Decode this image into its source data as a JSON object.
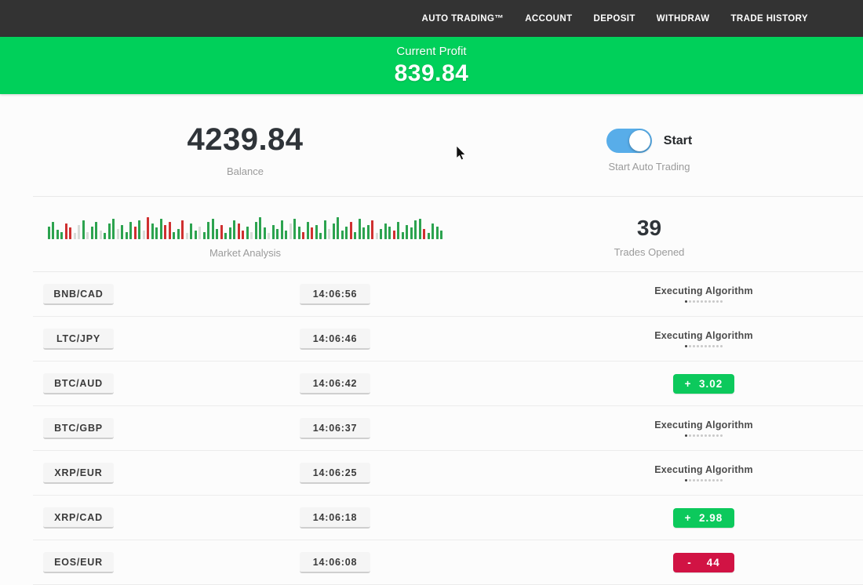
{
  "nav": {
    "items": [
      "AUTO TRADING™",
      "ACCOUNT",
      "DEPOSIT",
      "WITHDRAW",
      "TRADE HISTORY"
    ]
  },
  "banner": {
    "label": "Current Profit",
    "value": "839.84"
  },
  "account": {
    "balance": "4239.84",
    "balance_label": "Balance",
    "toggle_label": "Start",
    "toggle_sublabel": "Start Auto Trading",
    "toggle_on": true
  },
  "market": {
    "chart_label": "Market Analysis",
    "trades_opened": "39",
    "trades_opened_label": "Trades Opened"
  },
  "chart_data": {
    "type": "bar",
    "title": "Market Analysis",
    "xlabel": "",
    "ylabel": "",
    "legend": false,
    "note": "decorative mini candlestick-style bar strip; heights in px (8-30), colors g=green r=red l=light",
    "colors": {
      "g": "#2ca34f",
      "r": "#cf3030",
      "l": "#d8dcd8"
    },
    "bars": [
      [
        16,
        "g"
      ],
      [
        22,
        "g"
      ],
      [
        12,
        "g"
      ],
      [
        9,
        "g"
      ],
      [
        20,
        "r"
      ],
      [
        15,
        "r"
      ],
      [
        8,
        "l"
      ],
      [
        18,
        "l"
      ],
      [
        24,
        "g"
      ],
      [
        9,
        "l"
      ],
      [
        16,
        "g"
      ],
      [
        22,
        "g"
      ],
      [
        11,
        "l"
      ],
      [
        8,
        "g"
      ],
      [
        20,
        "g"
      ],
      [
        26,
        "g"
      ],
      [
        13,
        "l"
      ],
      [
        18,
        "g"
      ],
      [
        9,
        "g"
      ],
      [
        22,
        "g"
      ],
      [
        16,
        "r"
      ],
      [
        24,
        "g"
      ],
      [
        11,
        "l"
      ],
      [
        28,
        "r"
      ],
      [
        20,
        "g"
      ],
      [
        15,
        "g"
      ],
      [
        26,
        "g"
      ],
      [
        18,
        "r"
      ],
      [
        22,
        "r"
      ],
      [
        9,
        "g"
      ],
      [
        13,
        "g"
      ],
      [
        24,
        "r"
      ],
      [
        8,
        "l"
      ],
      [
        20,
        "g"
      ],
      [
        11,
        "g"
      ],
      [
        16,
        "l"
      ],
      [
        9,
        "g"
      ],
      [
        22,
        "g"
      ],
      [
        26,
        "g"
      ],
      [
        13,
        "g"
      ],
      [
        18,
        "r"
      ],
      [
        8,
        "g"
      ],
      [
        15,
        "g"
      ],
      [
        24,
        "g"
      ],
      [
        20,
        "r"
      ],
      [
        11,
        "r"
      ],
      [
        16,
        "g"
      ],
      [
        9,
        "l"
      ],
      [
        22,
        "g"
      ],
      [
        28,
        "g"
      ],
      [
        15,
        "g"
      ],
      [
        8,
        "l"
      ],
      [
        18,
        "g"
      ],
      [
        13,
        "g"
      ],
      [
        24,
        "g"
      ],
      [
        11,
        "g"
      ],
      [
        20,
        "l"
      ],
      [
        26,
        "g"
      ],
      [
        16,
        "g"
      ],
      [
        9,
        "r"
      ],
      [
        22,
        "g"
      ],
      [
        15,
        "r"
      ],
      [
        18,
        "g"
      ],
      [
        8,
        "g"
      ],
      [
        24,
        "g"
      ],
      [
        13,
        "l"
      ],
      [
        20,
        "g"
      ],
      [
        28,
        "g"
      ],
      [
        11,
        "g"
      ],
      [
        16,
        "g"
      ],
      [
        22,
        "r"
      ],
      [
        9,
        "g"
      ],
      [
        26,
        "g"
      ],
      [
        15,
        "g"
      ],
      [
        18,
        "g"
      ],
      [
        24,
        "r"
      ],
      [
        8,
        "l"
      ],
      [
        13,
        "g"
      ],
      [
        20,
        "g"
      ],
      [
        16,
        "g"
      ],
      [
        11,
        "r"
      ],
      [
        22,
        "g"
      ],
      [
        9,
        "g"
      ],
      [
        18,
        "g"
      ],
      [
        15,
        "g"
      ],
      [
        24,
        "g"
      ],
      [
        26,
        "g"
      ],
      [
        13,
        "r"
      ],
      [
        8,
        "g"
      ],
      [
        20,
        "g"
      ],
      [
        16,
        "g"
      ],
      [
        11,
        "g"
      ]
    ]
  },
  "trades": [
    {
      "pair": "BNB/CAD",
      "time": "14:06:56",
      "status": "executing",
      "status_label": "Executing Algorithm"
    },
    {
      "pair": "LTC/JPY",
      "time": "14:06:46",
      "status": "executing",
      "status_label": "Executing Algorithm"
    },
    {
      "pair": "BTC/AUD",
      "time": "14:06:42",
      "status": "profit",
      "result": "+  3.02"
    },
    {
      "pair": "BTC/GBP",
      "time": "14:06:37",
      "status": "executing",
      "status_label": "Executing Algorithm"
    },
    {
      "pair": "XRP/EUR",
      "time": "14:06:25",
      "status": "executing",
      "status_label": "Executing Algorithm"
    },
    {
      "pair": "XRP/CAD",
      "time": "14:06:18",
      "status": "profit",
      "result": "+  2.98"
    },
    {
      "pair": "EOS/EUR",
      "time": "14:06:08",
      "status": "loss",
      "result": "-    44"
    }
  ],
  "colors": {
    "nav_bg": "#333333",
    "green_banner": "#00d05a",
    "green_badge": "#0cc95c",
    "red_badge": "#d11344",
    "toggle_blue": "#58ade9"
  }
}
